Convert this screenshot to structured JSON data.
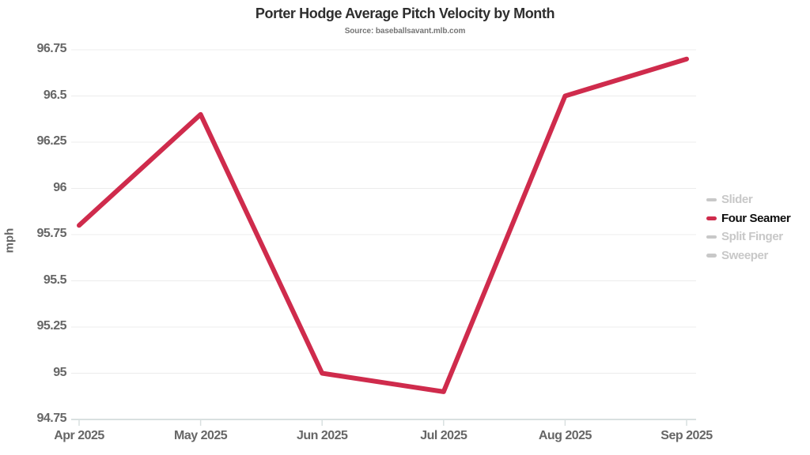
{
  "chart": {
    "title": "Porter Hodge Average Pitch Velocity by Month",
    "subtitle": "Source: baseballsavant.mlb.com"
  },
  "chart_data": {
    "type": "line",
    "title": "Porter Hodge Average Pitch Velocity by Month",
    "subtitle": "Source: baseballsavant.mlb.com",
    "xlabel": "",
    "ylabel": "mph",
    "categories": [
      "Apr 2025",
      "May 2025",
      "Jun 2025",
      "Jul 2025",
      "Aug 2025",
      "Sep 2025"
    ],
    "series": [
      {
        "name": "Slider",
        "visible": false,
        "values": null
      },
      {
        "name": "Four Seamer",
        "visible": true,
        "values": [
          95.8,
          96.4,
          95.0,
          94.9,
          96.5,
          96.7
        ]
      },
      {
        "name": "Split Finger",
        "visible": false,
        "values": null
      },
      {
        "name": "Sweeper",
        "visible": false,
        "values": null
      }
    ],
    "ylim": [
      94.75,
      96.75
    ],
    "ytick_labels": [
      "94.75",
      "95",
      "95.25",
      "95.5",
      "95.75",
      "96",
      "96.25",
      "96.5",
      "96.75"
    ],
    "grid": true,
    "legend_position": "right"
  },
  "colors": {
    "line": "#cf2b4c",
    "legend_inactive": "#c8c8c8",
    "legend_active_text": "#0d0d0d",
    "grid": "#ececec",
    "axis": "#d9e0e0",
    "tick_text": "#666666"
  }
}
